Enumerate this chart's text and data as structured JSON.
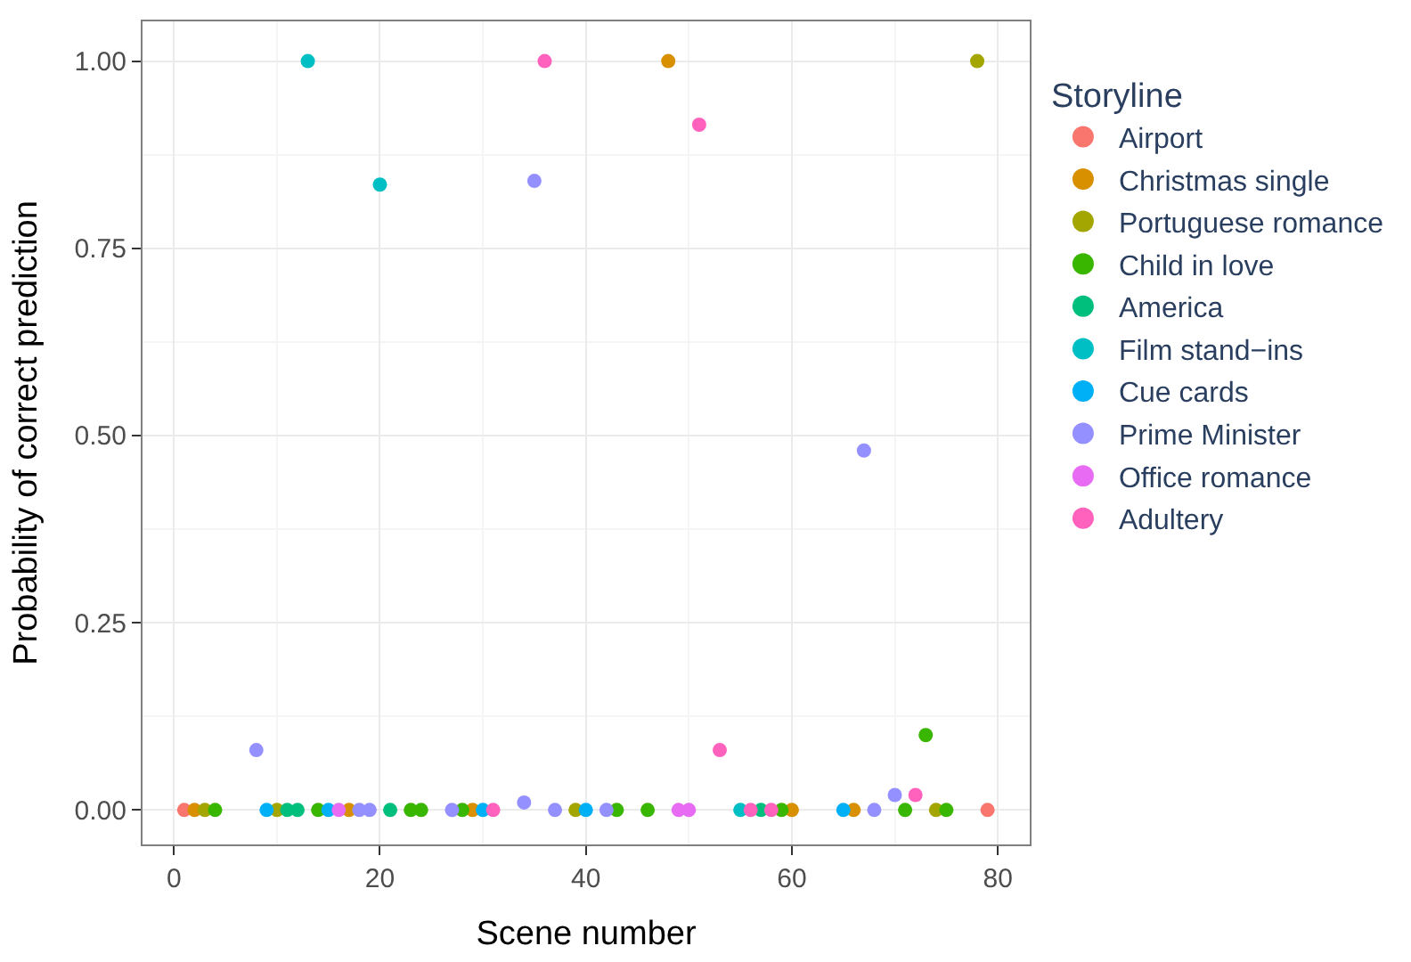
{
  "chart_data": {
    "type": "scatter",
    "xlabel": "Scene number",
    "ylabel": "Probability of correct prediction",
    "legend_title": "Storyline",
    "xlim": [
      -3.05,
      83.1
    ],
    "xticks": [
      0,
      20,
      40,
      60,
      80
    ],
    "ylim": [
      -0.046,
      1.053
    ],
    "yticks": [
      {
        "value": 0,
        "label": "0.00"
      },
      {
        "value": 0.25,
        "label": "0.25"
      },
      {
        "value": 0.5,
        "label": "0.50"
      },
      {
        "value": 0.75,
        "label": "0.75"
      },
      {
        "value": 1,
        "label": "1.00"
      }
    ],
    "grid": true,
    "legend": "right",
    "marker": "circle",
    "series": [
      {
        "name": "Airport",
        "color": "#f8766d",
        "x": [
          1,
          79
        ],
        "values": [
          0,
          0
        ]
      },
      {
        "name": "Christmas single",
        "color": "#d89000",
        "x": [
          2,
          17,
          29,
          48,
          60,
          66
        ],
        "values": [
          0,
          0,
          0,
          1,
          0,
          0
        ]
      },
      {
        "name": "Portuguese romance",
        "color": "#a3a500",
        "x": [
          3,
          10,
          39,
          74,
          78
        ],
        "values": [
          0,
          0,
          0,
          0,
          1
        ]
      },
      {
        "name": "Child in love",
        "color": "#39b600",
        "x": [
          4,
          14,
          23,
          24,
          28,
          43,
          46,
          59,
          71,
          73,
          75
        ],
        "values": [
          0,
          0,
          0,
          0,
          0,
          0,
          0,
          0,
          0,
          0.1,
          0
        ]
      },
      {
        "name": "America",
        "color": "#00bf7d",
        "x": [
          11,
          12,
          21,
          57
        ],
        "values": [
          0,
          0,
          0,
          0
        ]
      },
      {
        "name": "Film stand−ins",
        "color": "#00bfc4",
        "x": [
          13,
          20,
          55
        ],
        "values": [
          1,
          0.835,
          0
        ]
      },
      {
        "name": "Cue cards",
        "color": "#00b0f6",
        "x": [
          9,
          15,
          30,
          40,
          65
        ],
        "values": [
          0,
          0,
          0,
          0,
          0
        ]
      },
      {
        "name": "Prime Minister",
        "color": "#9590ff",
        "x": [
          8,
          18,
          19,
          27,
          34,
          35,
          37,
          42,
          67,
          68,
          70
        ],
        "values": [
          0.08,
          0,
          0,
          0,
          0.01,
          0.84,
          0,
          0,
          0.48,
          0,
          0.02
        ]
      },
      {
        "name": "Office romance",
        "color": "#e76bf3",
        "x": [
          16,
          49,
          50
        ],
        "values": [
          0,
          0,
          0
        ]
      },
      {
        "name": "Adultery",
        "color": "#ff62bc",
        "x": [
          31,
          36,
          51,
          53,
          56,
          58,
          72
        ],
        "values": [
          0,
          1,
          0.915,
          0.08,
          0,
          0,
          0.02
        ]
      }
    ]
  }
}
